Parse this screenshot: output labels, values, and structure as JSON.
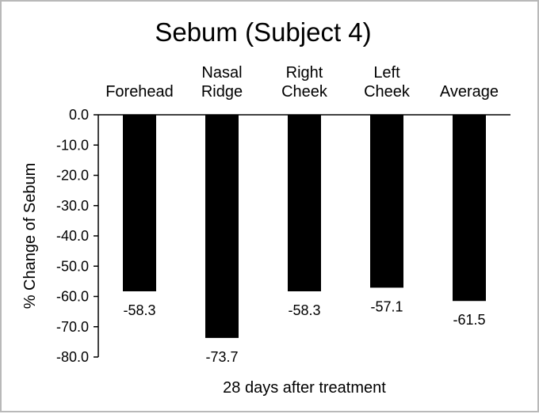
{
  "chart_data": {
    "type": "bar",
    "title": "Sebum (Subject 4)",
    "categories": [
      [
        "Forehead"
      ],
      [
        "Nasal",
        "Ridge"
      ],
      [
        "Right",
        "Cheek"
      ],
      [
        "Left",
        "Cheek"
      ],
      [
        "Average"
      ]
    ],
    "values": [
      -58.3,
      -73.7,
      -58.3,
      -57.1,
      -61.5
    ],
    "data_labels": [
      "-58.3",
      "-73.7",
      "-58.3",
      "-57.1",
      "-61.5"
    ],
    "ylabel": "% Change of Sebum",
    "xlabel": "28 days after treatment",
    "ylim": [
      -80,
      0
    ],
    "yticks": [
      "0.0",
      "-10.0",
      "-20.0",
      "-30.0",
      "-40.0",
      "-50.0",
      "-60.0",
      "-70.0",
      "-80.0"
    ],
    "ytick_values": [
      0,
      -10,
      -20,
      -30,
      -40,
      -50,
      -60,
      -70,
      -80
    ],
    "bar_color": "#000000",
    "grid": false,
    "legend": "none",
    "category_axis_position": "top"
  }
}
